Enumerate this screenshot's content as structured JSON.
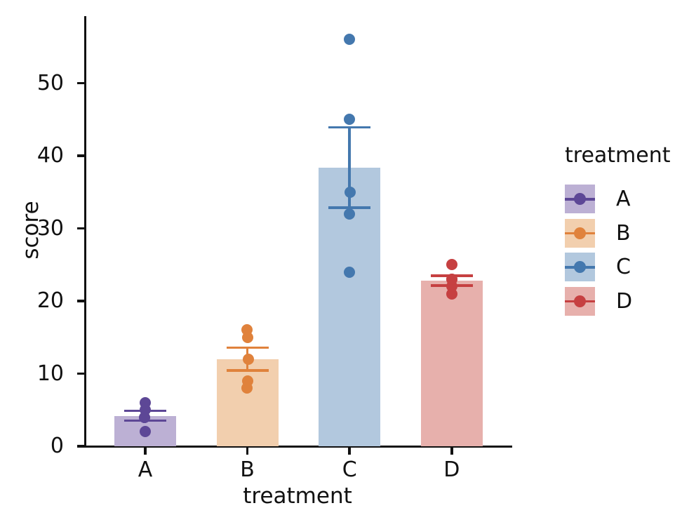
{
  "figure": {
    "background": "#ffffff",
    "text_color": "#111111",
    "axis_color": "#111111"
  },
  "chart_data": {
    "type": "bar",
    "title": "",
    "xlabel": "treatment",
    "ylabel": "score",
    "categories": [
      "A",
      "B",
      "C",
      "D"
    ],
    "yticks": [
      0,
      10,
      20,
      30,
      40,
      50
    ],
    "ylim": [
      0,
      59.5
    ],
    "grid": false,
    "error_bar": "mean ± standard error",
    "legend": {
      "title": "treatment",
      "position": "right"
    },
    "groups": [
      {
        "label": "A",
        "points": [
          2,
          4,
          4,
          5,
          6
        ],
        "mean": 4.2,
        "err_low": 3.54,
        "err_high": 4.86,
        "bar_color": "#bcb0d4",
        "point_color": "#5d4796"
      },
      {
        "label": "B",
        "points": [
          8,
          9,
          12,
          15,
          16
        ],
        "mean": 12.0,
        "err_low": 10.42,
        "err_high": 13.58,
        "bar_color": "#f2cfae",
        "point_color": "#e0823c"
      },
      {
        "label": "C",
        "points": [
          24,
          32,
          35,
          45,
          56
        ],
        "mean": 38.4,
        "err_low": 32.87,
        "err_high": 43.93,
        "bar_color": "#b2c8de",
        "point_color": "#4478ae"
      },
      {
        "label": "D",
        "points": [
          21,
          22,
          23,
          23,
          25
        ],
        "mean": 22.8,
        "err_low": 22.14,
        "err_high": 23.46,
        "bar_color": "#e7b0ac",
        "point_color": "#c64041"
      }
    ]
  }
}
